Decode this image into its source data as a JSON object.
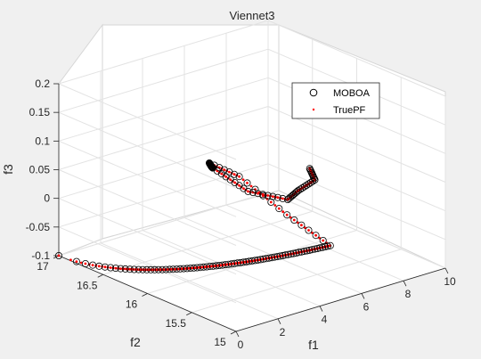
{
  "chart_data": {
    "type": "scatter",
    "projection": "3d",
    "title": "Viennet3",
    "xlabel": "f1",
    "ylabel": "f2",
    "zlabel": "f3",
    "xlim": [
      0,
      10
    ],
    "ylim": [
      15,
      17
    ],
    "zlim": [
      -0.1,
      0.2
    ],
    "x_ticks": [
      "0",
      "2",
      "4",
      "6",
      "8",
      "10"
    ],
    "y_ticks": [
      "15",
      "15.5",
      "16",
      "16.5",
      "17"
    ],
    "z_ticks": [
      "-0.1",
      "-0.05",
      "0",
      "0.05",
      "0.1",
      "0.15",
      "0.2"
    ],
    "grid": true,
    "legend_position": "top-right",
    "series": [
      {
        "name": "MOBOA",
        "marker": "circle-open",
        "color": "#000000"
      },
      {
        "name": "TruePF",
        "marker": "dot",
        "color": "#ff0000"
      }
    ],
    "front": {
      "note_units": "f1,f2,f3 data units",
      "segment_a": {
        "x": [
          0.0,
          4.5
        ],
        "y": [
          17.0,
          15.0
        ],
        "z": [
          -0.1,
          0.0
        ]
      },
      "segment_b": {
        "x": [
          4.5,
          4.55,
          4.6,
          4.65
        ],
        "y": [
          15.0,
          15.5,
          16.05,
          16.4
        ],
        "z": [
          0.0,
          0.02,
          0.05,
          0.05
        ]
      },
      "segment_c": {
        "x": [
          4.65,
          5.6,
          6.3,
          6.5,
          6.7,
          7.2,
          8.0,
          8.6
        ],
        "y": [
          16.4,
          16.6,
          16.75,
          16.4,
          16.0,
          16.0,
          16.0,
          16.2
        ],
        "z": [
          0.05,
          0.02,
          0.0,
          -0.02,
          -0.01,
          0.0,
          0.01,
          0.01
        ]
      }
    }
  }
}
